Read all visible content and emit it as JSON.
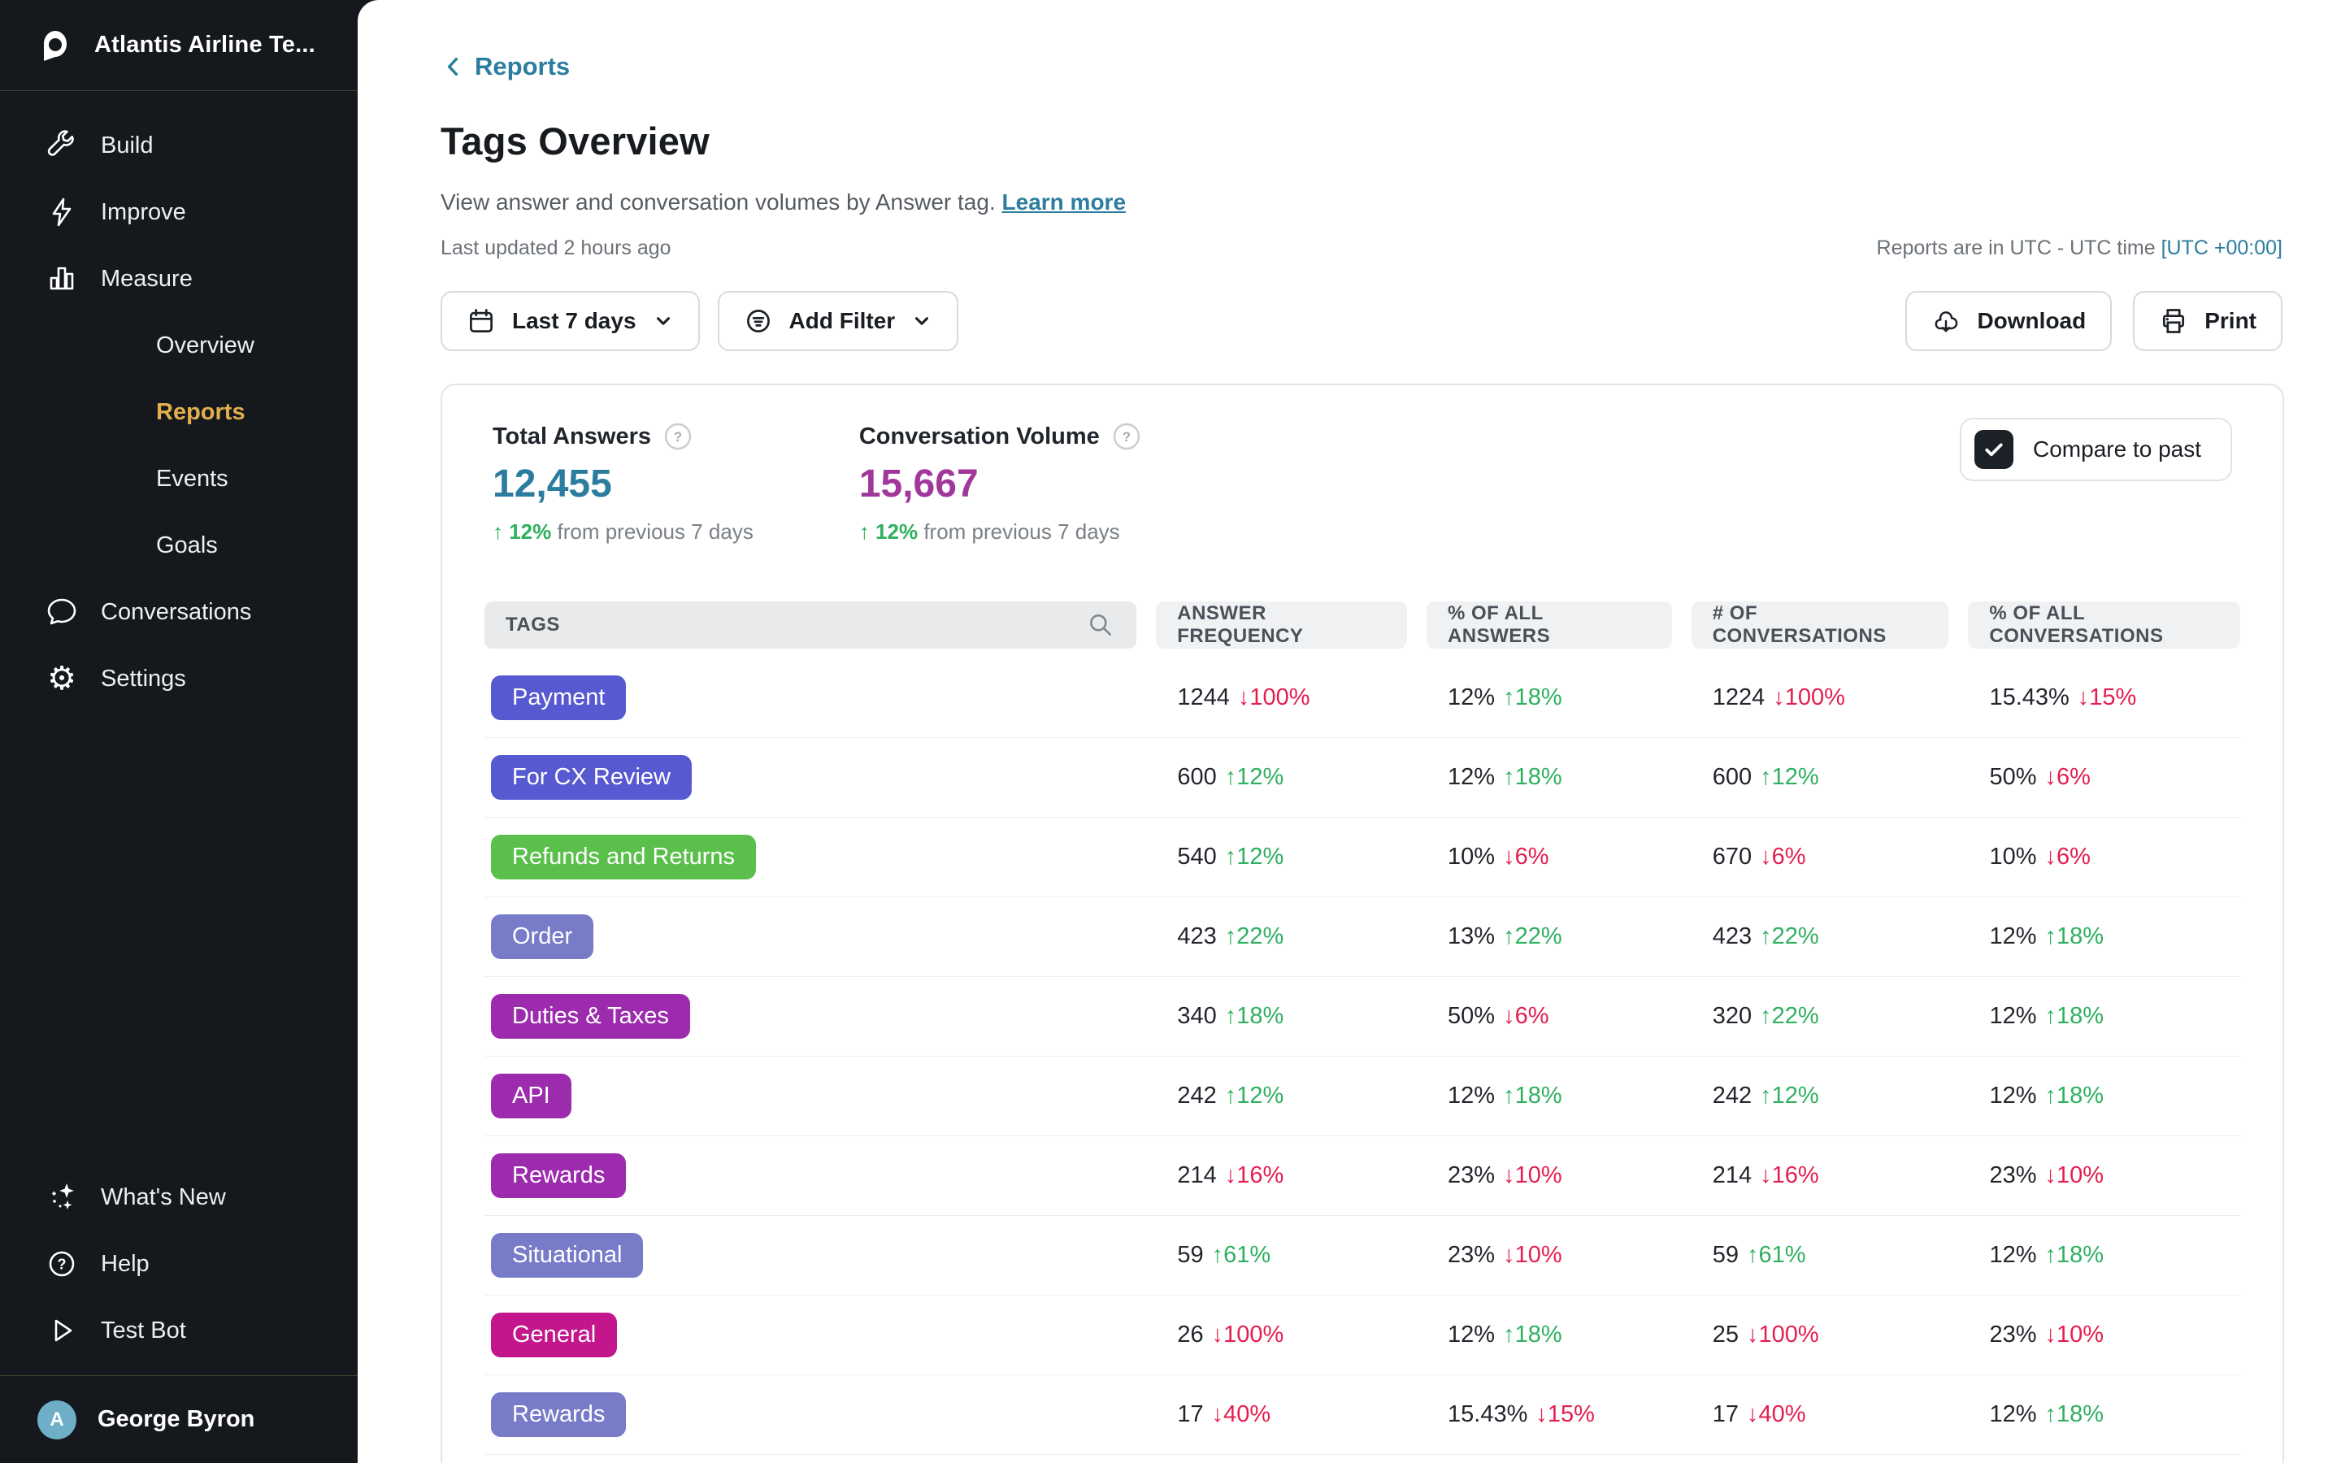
{
  "sidebar": {
    "workspace_name": "Atlantis Airline Te...",
    "nav": [
      {
        "label": "Build",
        "icon": "wrench",
        "indent": false,
        "active": false
      },
      {
        "label": "Improve",
        "icon": "lightning",
        "indent": false,
        "active": false
      },
      {
        "label": "Measure",
        "icon": "bar-chart",
        "indent": false,
        "active": false
      },
      {
        "label": "Overview",
        "icon": "",
        "indent": true,
        "active": false
      },
      {
        "label": "Reports",
        "icon": "",
        "indent": true,
        "active": true
      },
      {
        "label": "Events",
        "icon": "",
        "indent": true,
        "active": false
      },
      {
        "label": "Goals",
        "icon": "",
        "indent": true,
        "active": false
      },
      {
        "label": "Conversations",
        "icon": "chat",
        "indent": false,
        "active": false
      },
      {
        "label": "Settings",
        "icon": "gear",
        "indent": false,
        "active": false
      }
    ],
    "bottom_nav": [
      {
        "label": "What's New",
        "icon": "sparkles"
      },
      {
        "label": "Help",
        "icon": "help-circle"
      },
      {
        "label": "Test Bot",
        "icon": "play"
      }
    ],
    "user": {
      "name": "George Byron",
      "initial": "A"
    }
  },
  "header": {
    "back_link": "Reports",
    "title": "Tags Overview",
    "subtitle": "View answer and conversation volumes by Answer tag.",
    "learn_more": "Learn more",
    "last_updated": "Last updated 2 hours ago",
    "timezone_note": "Reports are in UTC - UTC time",
    "timezone_link": "[UTC +00:00]"
  },
  "toolbar": {
    "date_range": "Last 7 days",
    "add_filter": "Add Filter",
    "download": "Download",
    "print": "Print"
  },
  "panel": {
    "stats": [
      {
        "label": "Total Answers",
        "value": "12,455",
        "value_color": "#2B7C9E",
        "delta_text": "↑ 12%",
        "delta_dir": "up",
        "delta_suffix": "from previous 7 days"
      },
      {
        "label": "Conversation Volume",
        "value": "15,667",
        "value_color": "#A2379B",
        "delta_text": "↑ 12%",
        "delta_dir": "up",
        "delta_suffix": "from previous 7 days"
      }
    ],
    "compare_to_past_label": "Compare to past",
    "compare_to_past_checked": true
  },
  "table": {
    "columns": [
      "TAGS",
      "ANSWER FREQUENCY",
      "% OF ALL ANSWERS",
      "# OF CONVERSATIONS",
      "% OF ALL CONVERSATIONS"
    ],
    "rows": [
      {
        "tag": "Payment",
        "tag_color": "indigo",
        "cells": [
          [
            "1244",
            "down",
            "100%"
          ],
          [
            "12%",
            "up",
            "18%"
          ],
          [
            "1224",
            "down",
            "100%"
          ],
          [
            "15.43%",
            "down",
            "15%"
          ]
        ]
      },
      {
        "tag": "For CX Review",
        "tag_color": "indigo",
        "cells": [
          [
            "600",
            "up",
            "12%"
          ],
          [
            "12%",
            "up",
            "18%"
          ],
          [
            "600",
            "up",
            "12%"
          ],
          [
            "50%",
            "down",
            "6%"
          ]
        ]
      },
      {
        "tag": "Refunds and Returns",
        "tag_color": "green",
        "cells": [
          [
            "540",
            "up",
            "12%"
          ],
          [
            "10%",
            "down",
            "6%"
          ],
          [
            "670",
            "down",
            "6%"
          ],
          [
            "10%",
            "down",
            "6%"
          ]
        ]
      },
      {
        "tag": "Order",
        "tag_color": "periwinkle",
        "cells": [
          [
            "423",
            "up",
            "22%"
          ],
          [
            "13%",
            "up",
            "22%"
          ],
          [
            "423",
            "up",
            "22%"
          ],
          [
            "12%",
            "up",
            "18%"
          ]
        ]
      },
      {
        "tag": "Duties & Taxes",
        "tag_color": "purple",
        "cells": [
          [
            "340",
            "up",
            "18%"
          ],
          [
            "50%",
            "down",
            "6%"
          ],
          [
            "320",
            "up",
            "22%"
          ],
          [
            "12%",
            "up",
            "18%"
          ]
        ]
      },
      {
        "tag": "API",
        "tag_color": "purple",
        "cells": [
          [
            "242",
            "up",
            "12%"
          ],
          [
            "12%",
            "up",
            "18%"
          ],
          [
            "242",
            "up",
            "12%"
          ],
          [
            "12%",
            "up",
            "18%"
          ]
        ]
      },
      {
        "tag": "Rewards",
        "tag_color": "purple",
        "cells": [
          [
            "214",
            "down",
            "16%"
          ],
          [
            "23%",
            "down",
            "10%"
          ],
          [
            "214",
            "down",
            "16%"
          ],
          [
            "23%",
            "down",
            "10%"
          ]
        ]
      },
      {
        "tag": "Situational",
        "tag_color": "periwinkle",
        "cells": [
          [
            "59",
            "up",
            "61%"
          ],
          [
            "23%",
            "down",
            "10%"
          ],
          [
            "59",
            "up",
            "61%"
          ],
          [
            "12%",
            "up",
            "18%"
          ]
        ]
      },
      {
        "tag": "General",
        "tag_color": "pink",
        "cells": [
          [
            "26",
            "down",
            "100%"
          ],
          [
            "12%",
            "up",
            "18%"
          ],
          [
            "25",
            "down",
            "100%"
          ],
          [
            "23%",
            "down",
            "10%"
          ]
        ]
      },
      {
        "tag": "Rewards",
        "tag_color": "periwinkle",
        "cells": [
          [
            "17",
            "down",
            "40%"
          ],
          [
            "15.43%",
            "down",
            "15%"
          ],
          [
            "17",
            "down",
            "40%"
          ],
          [
            "12%",
            "up",
            "18%"
          ]
        ]
      }
    ]
  },
  "colors": {
    "accent_teal": "#2C7D9E",
    "stat_magenta": "#A2379B",
    "positive_green": "#2FB060",
    "negative_red": "#E41E4F",
    "sidebar_active_gold": "#E3AF4D",
    "badge_indigo": "#5759D1",
    "badge_green": "#5ABF4B",
    "badge_periwinkle": "#777BC8",
    "badge_purple": "#9C2BAD",
    "badge_pink": "#C3168C"
  }
}
